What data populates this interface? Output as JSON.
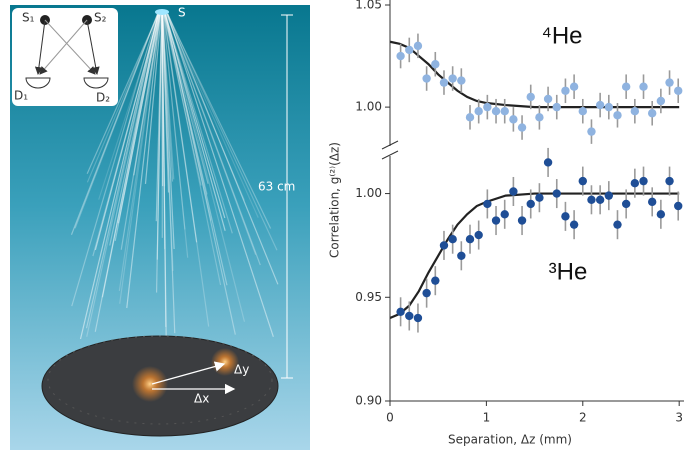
{
  "illustration": {
    "source": "S",
    "source_1": "S₁",
    "source_2": "S₂",
    "detector_1": "D₁",
    "detector_2": "D₂",
    "height": "63 cm",
    "dx": "Δx",
    "dy": "Δy"
  },
  "chart_data": [
    {
      "type": "scatter",
      "annotation": "⁴He",
      "xlim": [
        0,
        3.05
      ],
      "ylim": [
        0.979,
        1.05
      ],
      "yticks": [
        {
          "value": 1,
          "label": "1.00"
        },
        1.05
      ],
      "series": [
        {
          "name": "⁴He",
          "color": "#8fb3e0",
          "x": [
            0.11,
            0.2,
            0.29,
            0.38,
            0.47,
            0.56,
            0.65,
            0.74,
            0.83,
            0.92,
            1.01,
            1.1,
            1.19,
            1.28,
            1.37,
            1.46,
            1.55,
            1.64,
            1.73,
            1.82,
            1.91,
            2.0,
            2.09,
            2.18,
            2.27,
            2.36,
            2.45,
            2.54,
            2.63,
            2.72,
            2.81,
            2.9,
            2.99
          ],
          "values": [
            1.025,
            1.028,
            1.03,
            1.014,
            1.021,
            1.012,
            1.014,
            1.013,
            0.995,
            0.998,
            1.0,
            0.998,
            0.998,
            0.994,
            0.99,
            1.005,
            0.995,
            1.004,
            1.0,
            1.008,
            1.01,
            0.998,
            0.988,
            1.001,
            1.0,
            0.996,
            1.01,
            0.998,
            1.01,
            0.997,
            1.003,
            1.012,
            1.008
          ],
          "errors": [
            0.006,
            0.006,
            0.006,
            0.006,
            0.006,
            0.006,
            0.006,
            0.006,
            0.006,
            0.006,
            0.006,
            0.006,
            0.006,
            0.006,
            0.006,
            0.006,
            0.006,
            0.006,
            0.006,
            0.006,
            0.006,
            0.006,
            0.006,
            0.006,
            0.006,
            0.006,
            0.006,
            0.006,
            0.006,
            0.006,
            0.006,
            0.006,
            0.006
          ]
        }
      ],
      "fit": {
        "color": "#222222",
        "x": [
          0,
          0.1,
          0.2,
          0.3,
          0.4,
          0.5,
          0.6,
          0.7,
          0.8,
          0.9,
          1.0,
          1.2,
          1.5,
          3.0
        ],
        "values": [
          1.032,
          1.031,
          1.029,
          1.025,
          1.021,
          1.016,
          1.012,
          1.008,
          1.005,
          1.003,
          1.002,
          1.001,
          1.0,
          1.0
        ]
      }
    },
    {
      "type": "scatter",
      "annotation": "³He",
      "x_label": "Separation, Δz (mm)",
      "y_label": "Correlation, g⁽²⁾(Δz)",
      "xlim": [
        0,
        3.05
      ],
      "ylim": [
        0.9,
        1.021
      ],
      "xticks": [
        0,
        1,
        2,
        3
      ],
      "yticks": [
        {
          "value": 0.9,
          "label": "0.90"
        },
        0.95,
        {
          "value": 1,
          "label": "1.00"
        }
      ],
      "series": [
        {
          "name": "³He",
          "color": "#1f4e96",
          "x": [
            0.11,
            0.2,
            0.29,
            0.38,
            0.47,
            0.56,
            0.65,
            0.74,
            0.83,
            0.92,
            1.01,
            1.1,
            1.19,
            1.28,
            1.37,
            1.46,
            1.55,
            1.64,
            1.73,
            1.82,
            1.91,
            2.0,
            2.09,
            2.18,
            2.27,
            2.36,
            2.45,
            2.54,
            2.63,
            2.72,
            2.81,
            2.9,
            2.99
          ],
          "values": [
            0.943,
            0.941,
            0.94,
            0.952,
            0.958,
            0.975,
            0.978,
            0.97,
            0.978,
            0.98,
            0.995,
            0.987,
            0.99,
            1.001,
            0.987,
            0.995,
            0.998,
            1.015,
            1.0,
            0.989,
            0.985,
            1.006,
            0.997,
            0.997,
            0.999,
            0.985,
            0.995,
            1.005,
            1.006,
            0.996,
            0.99,
            1.006,
            0.994
          ],
          "errors": [
            0.007,
            0.007,
            0.007,
            0.007,
            0.007,
            0.007,
            0.007,
            0.007,
            0.007,
            0.007,
            0.007,
            0.007,
            0.007,
            0.007,
            0.007,
            0.007,
            0.007,
            0.007,
            0.007,
            0.007,
            0.007,
            0.007,
            0.007,
            0.007,
            0.007,
            0.007,
            0.007,
            0.007,
            0.007,
            0.007,
            0.007,
            0.007,
            0.007
          ]
        }
      ],
      "fit": {
        "color": "#222222",
        "x": [
          0,
          0.1,
          0.2,
          0.3,
          0.4,
          0.5,
          0.6,
          0.7,
          0.8,
          0.9,
          1.0,
          1.2,
          1.5,
          3.0
        ],
        "values": [
          0.94,
          0.942,
          0.946,
          0.953,
          0.962,
          0.97,
          0.978,
          0.985,
          0.99,
          0.994,
          0.996,
          0.999,
          1.0,
          1.0
        ]
      }
    }
  ]
}
